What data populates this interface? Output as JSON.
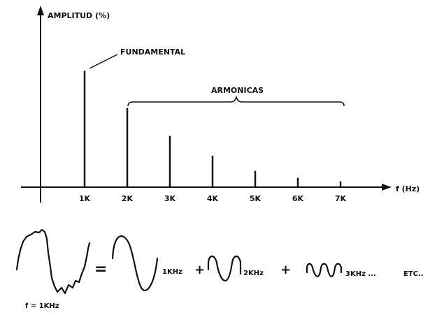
{
  "chart_data": {
    "type": "bar",
    "ylabel": "AMPLITUD (%)",
    "xlabel": "f (Hz)",
    "categories": [
      "1K",
      "2K",
      "3K",
      "4K",
      "5K",
      "6K",
      "7K"
    ],
    "values": [
      100,
      68,
      44,
      27,
      14,
      8,
      5
    ],
    "ylim": [
      0,
      150
    ],
    "grid": false,
    "annotations": {
      "fundamental": "FUNDAMENTAL",
      "harmonics": "ARMONICAS"
    }
  },
  "decomposition": {
    "original_label": "f = 1KHz",
    "equals": "=",
    "plus": "+",
    "term1": "1KHz",
    "term2": "2KHz",
    "term3": "3KHz ...",
    "etc": "ETC.."
  }
}
